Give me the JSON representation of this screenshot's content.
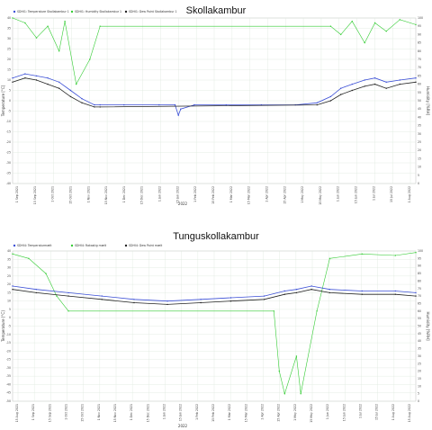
{
  "charts": [
    {
      "title": "Skollakambur",
      "xlabel": "2022",
      "ylabel_left": "Temperature [°C]",
      "ylabel_right": "Humidity [%RH]",
      "legend": [
        "SDHI1: Temperature Skollakambur 1",
        "SDHI1: Humidity Skollakambur 1",
        "SDHI1: Dew Point Skollakambur 1"
      ],
      "y_left_ticks": [
        "40",
        "35",
        "30",
        "25",
        "20",
        "15",
        "10",
        "5",
        "0",
        "-5",
        "-10",
        "-15",
        "-20",
        "-25",
        "-30",
        "-35",
        "-40"
      ],
      "y_right_ticks": [
        "100",
        "95",
        "90",
        "85",
        "80",
        "75",
        "70",
        "65",
        "60",
        "55",
        "50",
        "45",
        "40",
        "35",
        "30",
        "25",
        "20",
        "15",
        "10",
        "5",
        "0"
      ],
      "x_ticks": [
        "1 Sep 2021",
        "15 Sep 2021",
        "1 Oct 2021",
        "15 Oct 2021",
        "1 Nov 2021",
        "15 Nov 2021",
        "1 Dec 2021",
        "15 Dec 2021",
        "1 Jan 2022",
        "15 Jan 2022",
        "1 Feb 2022",
        "15 Feb 2022",
        "1 Mar 2022",
        "15 Mar 2022",
        "1 Apr 2022",
        "15 Apr 2022",
        "1 May 2022",
        "15 May 2022",
        "1 Jun 2022",
        "15 Jun 2022",
        "1 Jul 2022",
        "15 Jul 2022",
        "1 Aug 2022"
      ]
    },
    {
      "title": "Tunguskollakambur",
      "xlabel": "2022",
      "ylabel_left": "Temperature [°C]",
      "ylabel_right": "Humidity [%RH]",
      "legend": [
        "SDHI4: Temperaturmælt",
        "SDHI4: Rakastig mælt",
        "SDHI4: Dew Point mælt"
      ],
      "y_left_ticks": [
        "40",
        "35",
        "30",
        "25",
        "20",
        "15",
        "10",
        "5",
        "0",
        "-5",
        "-10",
        "-15",
        "-20",
        "-25",
        "-30",
        "-35",
        "-40",
        "-45",
        "-50"
      ],
      "y_right_ticks": [
        "100",
        "95",
        "90",
        "85",
        "80",
        "75",
        "70",
        "65",
        "60",
        "55",
        "50",
        "45",
        "40",
        "35",
        "30",
        "25",
        "20",
        "15",
        "10",
        "5",
        "0"
      ],
      "x_ticks": [
        "15 Aug 2021",
        "1 Sep 2021",
        "15 Sep 2021",
        "1 Oct 2021",
        "15 Oct 2021",
        "1 Nov 2021",
        "15 Nov 2021",
        "1 Dec 2021",
        "15 Dec 2021",
        "1 Jan 2022",
        "15 Jan 2022",
        "1 Feb 2022",
        "15 Feb 2022",
        "1 Mar 2022",
        "15 Mar 2022",
        "1 Apr 2022",
        "15 Apr 2022",
        "1 May 2022",
        "15 May 2022",
        "1 Jun 2022",
        "15 Jun 2022",
        "1 Jul 2022",
        "15 Jul 2022",
        "1 Aug 2022",
        "15 Aug 2022"
      ]
    }
  ],
  "colors": {
    "temperature": "#3b4fd6",
    "humidity": "#33cc33",
    "dewpoint": "#222222",
    "grid": "#dde8dd"
  },
  "chart_data": [
    {
      "type": "line",
      "title": "Skollakambur",
      "xlabel": "2022",
      "ylabel": "Temperature [°C]",
      "y2label": "Humidity [%RH]",
      "xlim": [
        "2021-08-25",
        "2022-08-15"
      ],
      "ylim": [
        -40,
        40
      ],
      "y2lim": [
        0,
        100
      ],
      "grid": true,
      "legend_position": "top-left",
      "series": [
        {
          "name": "SDHI1: Temperature Skollakambur 1",
          "axis": "left",
          "x": [
            "2021-08-25",
            "2021-09-05",
            "2021-09-15",
            "2021-09-25",
            "2021-10-05",
            "2021-10-15",
            "2021-10-25",
            "2021-11-05",
            "2021-11-10",
            "2021-12-01",
            "2022-01-01",
            "2022-01-15",
            "2022-01-18",
            "2022-01-20",
            "2022-02-01",
            "2022-03-01",
            "2022-04-01",
            "2022-05-01",
            "2022-05-20",
            "2022-06-01",
            "2022-06-10",
            "2022-06-20",
            "2022-07-01",
            "2022-07-10",
            "2022-07-20",
            "2022-08-01",
            "2022-08-15"
          ],
          "values": [
            11,
            13,
            12,
            11,
            9,
            5,
            1,
            -2,
            -2,
            -2,
            -2,
            -2,
            -7,
            -4,
            -2,
            -2,
            -2,
            -2,
            -1,
            2,
            6,
            8,
            10,
            11,
            9,
            10,
            11
          ]
        },
        {
          "name": "SDHI1: Humidity Skollakambur 1",
          "axis": "right",
          "x": [
            "2021-08-25",
            "2021-09-05",
            "2021-09-15",
            "2021-09-25",
            "2021-10-05",
            "2021-10-10",
            "2021-10-20",
            "2021-11-01",
            "2021-11-10",
            "2022-06-01",
            "2022-06-10",
            "2022-06-20",
            "2022-07-01",
            "2022-07-10",
            "2022-07-20",
            "2022-08-01",
            "2022-08-15"
          ],
          "values": [
            100,
            97,
            88,
            95,
            80,
            98,
            60,
            75,
            95,
            95,
            90,
            98,
            85,
            97,
            92,
            99,
            96
          ]
        },
        {
          "name": "SDHI1: Dew Point Skollakambur 1",
          "axis": "left",
          "x": [
            "2021-08-25",
            "2021-09-05",
            "2021-09-15",
            "2021-09-25",
            "2021-10-05",
            "2021-10-15",
            "2021-10-25",
            "2021-11-05",
            "2021-11-10",
            "2022-05-20",
            "2022-06-01",
            "2022-06-10",
            "2022-06-20",
            "2022-07-01",
            "2022-07-10",
            "2022-07-20",
            "2022-08-01",
            "2022-08-15"
          ],
          "values": [
            9,
            11,
            10,
            8,
            6,
            2,
            -1,
            -3,
            -3,
            -2,
            0,
            3,
            5,
            7,
            8,
            6,
            8,
            9
          ]
        }
      ]
    },
    {
      "type": "line",
      "title": "Tunguskollakambur",
      "xlabel": "2022",
      "ylabel": "Temperature [°C]",
      "y2label": "Humidity [%RH]",
      "xlim": [
        "2021-08-10",
        "2022-08-20"
      ],
      "ylim": [
        -50,
        40
      ],
      "y2lim": [
        0,
        100
      ],
      "grid": true,
      "legend_position": "top-left",
      "series": [
        {
          "name": "SDHI4: Temperaturmælt",
          "axis": "left",
          "x": [
            "2021-08-10",
            "2021-09-01",
            "2021-10-01",
            "2021-11-01",
            "2021-12-01",
            "2022-01-01",
            "2022-02-01",
            "2022-03-01",
            "2022-04-01",
            "2022-04-20",
            "2022-05-01",
            "2022-05-15",
            "2022-06-01",
            "2022-07-01",
            "2022-08-01",
            "2022-08-20"
          ],
          "values": [
            19,
            17,
            15,
            13,
            11,
            10,
            11,
            12,
            13,
            16,
            17,
            19,
            17,
            16,
            16,
            15
          ]
        },
        {
          "name": "SDHI4: Rakastig mælt",
          "axis": "right",
          "x": [
            "2021-08-10",
            "2021-08-25",
            "2021-09-10",
            "2021-09-20",
            "2021-10-01",
            "2022-04-10",
            "2022-04-15",
            "2022-04-20",
            "2022-05-01",
            "2022-05-05",
            "2022-05-20",
            "2022-06-01",
            "2022-07-01",
            "2022-08-01",
            "2022-08-20"
          ],
          "values": [
            98,
            95,
            85,
            70,
            60,
            60,
            20,
            5,
            30,
            5,
            60,
            95,
            98,
            97,
            99
          ]
        },
        {
          "name": "SDHI4: Dew Point mælt",
          "axis": "left",
          "x": [
            "2021-08-10",
            "2021-09-01",
            "2021-10-01",
            "2021-11-01",
            "2021-12-01",
            "2022-01-01",
            "2022-02-01",
            "2022-03-01",
            "2022-04-01",
            "2022-04-20",
            "2022-05-01",
            "2022-05-15",
            "2022-06-01",
            "2022-07-01",
            "2022-08-01",
            "2022-08-20"
          ],
          "values": [
            17,
            15,
            13,
            11,
            9,
            8,
            9,
            10,
            11,
            14,
            15,
            17,
            15,
            14,
            14,
            13
          ]
        }
      ]
    }
  ]
}
